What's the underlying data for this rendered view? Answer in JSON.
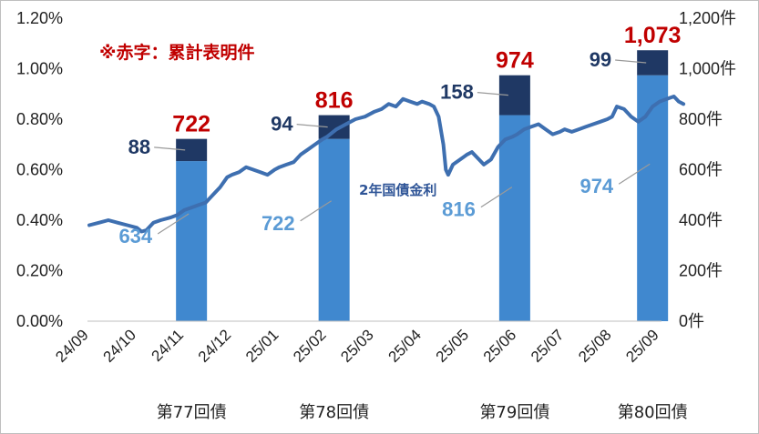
{
  "chart_data": {
    "type": "bar+line",
    "note": "※赤字：累計表明件",
    "categories": [
      "24/09",
      "24/10",
      "24/11",
      "24/12",
      "25/01",
      "25/02",
      "25/03",
      "25/04",
      "25/05",
      "25/06",
      "25/07",
      "25/08",
      "25/09"
    ],
    "left_axis": {
      "ticks": [
        "0.00%",
        "0.20%",
        "0.40%",
        "0.60%",
        "0.80%",
        "1.00%",
        "1.20%"
      ],
      "range": [
        0,
        1.2
      ]
    },
    "right_axis": {
      "ticks": [
        "0件",
        "200件",
        "400件",
        "600件",
        "800件",
        "1,000件",
        "1,200件"
      ],
      "range": [
        0,
        1200
      ]
    },
    "bars": [
      {
        "bond": "第77回債",
        "category_position": 2.15,
        "previous": 634,
        "new": 88,
        "total": 722,
        "previous_label": "634",
        "new_label": "88",
        "total_label": "722"
      },
      {
        "bond": "第78回債",
        "category_position": 5.15,
        "previous": 722,
        "new": 94,
        "total": 816,
        "previous_label": "722",
        "new_label": "94",
        "total_label": "816"
      },
      {
        "bond": "第79回債",
        "category_position": 8.95,
        "previous": 816,
        "new": 158,
        "total": 974,
        "previous_label": "816",
        "new_label": "158",
        "total_label": "974"
      },
      {
        "bond": "第80回債",
        "category_position": 11.85,
        "previous": 974,
        "new": 99,
        "total": 1073,
        "previous_label": "974",
        "new_label": "99",
        "total_label": "1,073"
      }
    ],
    "line": {
      "name": "2年国債金利",
      "points": [
        [
          0.0,
          0.38
        ],
        [
          0.2,
          0.39
        ],
        [
          0.4,
          0.4
        ],
        [
          0.6,
          0.39
        ],
        [
          0.8,
          0.38
        ],
        [
          1.0,
          0.37
        ],
        [
          1.1,
          0.355
        ],
        [
          1.2,
          0.36
        ],
        [
          1.35,
          0.39
        ],
        [
          1.5,
          0.4
        ],
        [
          1.7,
          0.41
        ],
        [
          1.85,
          0.42
        ],
        [
          2.0,
          0.44
        ],
        [
          2.15,
          0.45
        ],
        [
          2.3,
          0.46
        ],
        [
          2.45,
          0.47
        ],
        [
          2.6,
          0.5
        ],
        [
          2.75,
          0.53
        ],
        [
          2.9,
          0.57
        ],
        [
          3.0,
          0.58
        ],
        [
          3.15,
          0.59
        ],
        [
          3.3,
          0.61
        ],
        [
          3.45,
          0.6
        ],
        [
          3.6,
          0.59
        ],
        [
          3.75,
          0.58
        ],
        [
          3.9,
          0.6
        ],
        [
          4.0,
          0.61
        ],
        [
          4.15,
          0.62
        ],
        [
          4.3,
          0.63
        ],
        [
          4.45,
          0.66
        ],
        [
          4.6,
          0.68
        ],
        [
          4.75,
          0.7
        ],
        [
          4.9,
          0.72
        ],
        [
          5.0,
          0.73
        ],
        [
          5.2,
          0.76
        ],
        [
          5.4,
          0.78
        ],
        [
          5.6,
          0.8
        ],
        [
          5.8,
          0.81
        ],
        [
          6.0,
          0.83
        ],
        [
          6.15,
          0.84
        ],
        [
          6.3,
          0.86
        ],
        [
          6.45,
          0.85
        ],
        [
          6.6,
          0.88
        ],
        [
          6.75,
          0.87
        ],
        [
          6.9,
          0.86
        ],
        [
          7.0,
          0.87
        ],
        [
          7.15,
          0.86
        ],
        [
          7.25,
          0.85
        ],
        [
          7.35,
          0.81
        ],
        [
          7.45,
          0.7
        ],
        [
          7.5,
          0.6
        ],
        [
          7.55,
          0.58
        ],
        [
          7.65,
          0.62
        ],
        [
          7.8,
          0.64
        ],
        [
          7.95,
          0.66
        ],
        [
          8.05,
          0.67
        ],
        [
          8.2,
          0.64
        ],
        [
          8.3,
          0.62
        ],
        [
          8.45,
          0.64
        ],
        [
          8.6,
          0.69
        ],
        [
          8.75,
          0.72
        ],
        [
          8.9,
          0.73
        ],
        [
          9.0,
          0.74
        ],
        [
          9.15,
          0.76
        ],
        [
          9.3,
          0.77
        ],
        [
          9.45,
          0.78
        ],
        [
          9.6,
          0.76
        ],
        [
          9.75,
          0.74
        ],
        [
          9.9,
          0.75
        ],
        [
          10.0,
          0.76
        ],
        [
          10.15,
          0.75
        ],
        [
          10.3,
          0.76
        ],
        [
          10.45,
          0.77
        ],
        [
          10.6,
          0.78
        ],
        [
          10.75,
          0.79
        ],
        [
          10.9,
          0.8
        ],
        [
          11.0,
          0.81
        ],
        [
          11.1,
          0.85
        ],
        [
          11.25,
          0.84
        ],
        [
          11.4,
          0.81
        ],
        [
          11.55,
          0.79
        ],
        [
          11.7,
          0.81
        ],
        [
          11.85,
          0.85
        ],
        [
          12.0,
          0.87
        ],
        [
          12.15,
          0.88
        ],
        [
          12.3,
          0.89
        ],
        [
          12.4,
          0.87
        ],
        [
          12.5,
          0.86
        ]
      ]
    },
    "colors": {
      "previous": "#4088cf",
      "new": "#1f3864",
      "line": "#3e6fb0",
      "total": "#c00000"
    }
  }
}
